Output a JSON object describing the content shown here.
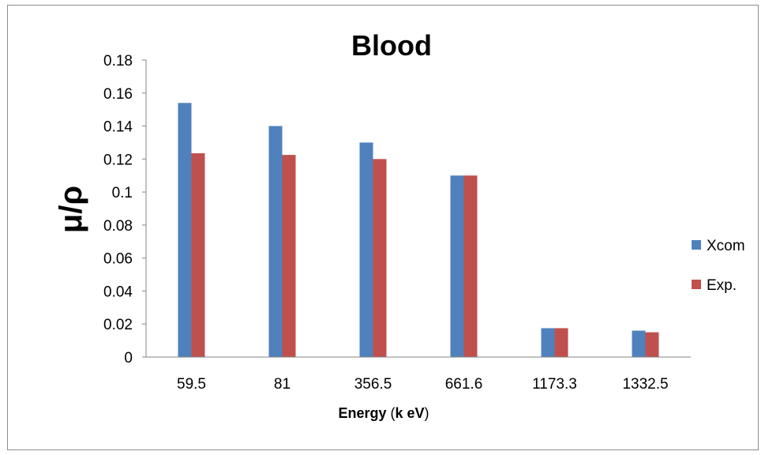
{
  "chart_data": {
    "type": "bar",
    "title": "Blood",
    "xlabel": "Energy (k eV)",
    "xlabel_parts": {
      "prefix": "Energy ",
      "open": "(",
      "unit": "k eV",
      "close": ")"
    },
    "ylabel": "μ/ρ",
    "categories": [
      "59.5",
      "81",
      "356.5",
      "661.6",
      "1173.3",
      "1332.5"
    ],
    "series": [
      {
        "name": "Xcom",
        "color": "#4f81bd",
        "values": [
          0.154,
          0.14,
          0.13,
          0.11,
          0.0175,
          0.016
        ]
      },
      {
        "name": "Exp.",
        "color": "#c0504d",
        "values": [
          0.1235,
          0.1225,
          0.12,
          0.11,
          0.0175,
          0.015
        ]
      }
    ],
    "ylim": [
      0,
      0.18
    ],
    "yticks": [
      "0",
      "0.02",
      "0.04",
      "0.06",
      "0.08",
      "0.1",
      "0.12",
      "0.14",
      "0.16",
      "0.18"
    ],
    "grid": false,
    "legend": "right"
  }
}
